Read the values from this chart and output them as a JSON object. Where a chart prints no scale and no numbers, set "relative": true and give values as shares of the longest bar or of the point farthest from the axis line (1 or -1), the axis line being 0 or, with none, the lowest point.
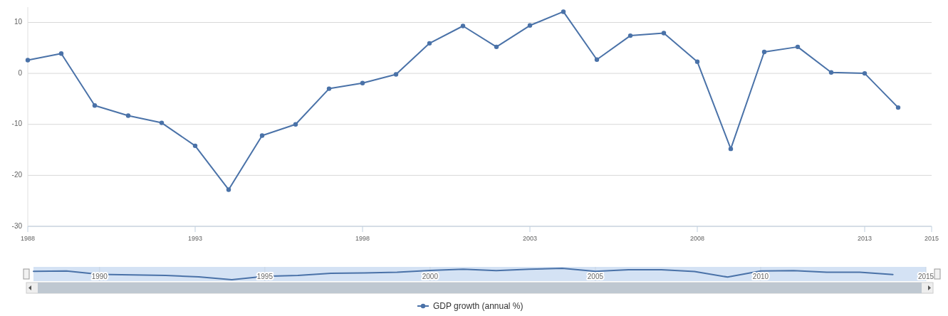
{
  "chart_data": [
    {
      "type": "line",
      "x": [
        1988,
        1989,
        1990,
        1991,
        1992,
        1993,
        1994,
        1995,
        1996,
        1997,
        1998,
        1999,
        2000,
        2001,
        2002,
        2003,
        2004,
        2005,
        2006,
        2007,
        2008,
        2009,
        2010,
        2011,
        2012,
        2013,
        2014
      ],
      "series": [
        {
          "name": "GDP growth (annual %)",
          "color": "#4a72a8",
          "values": [
            2.6,
            3.9,
            -6.3,
            -8.3,
            -9.7,
            -14.2,
            -22.8,
            -12.2,
            -10.0,
            -3.0,
            -1.9,
            -0.2,
            5.9,
            9.3,
            5.2,
            9.4,
            12.1,
            2.7,
            7.4,
            7.9,
            2.3,
            -14.8,
            4.2,
            5.2,
            0.2,
            0.0,
            -6.7
          ]
        }
      ],
      "xlim": [
        1988,
        2015
      ],
      "xticks": [
        1988,
        1993,
        1998,
        2003,
        2008,
        2013,
        2015
      ],
      "ylim": [
        -30,
        13
      ],
      "yticks": [
        -30,
        -20,
        -10,
        0,
        10
      ],
      "grid": "y",
      "marker": "circle",
      "line_style": "solid",
      "legend": "bottom"
    },
    {
      "type": "line",
      "x": [
        1988,
        1989,
        1990,
        1991,
        1992,
        1993,
        1994,
        1995,
        1996,
        1997,
        1998,
        1999,
        2000,
        2001,
        2002,
        2003,
        2004,
        2005,
        2006,
        2007,
        2008,
        2009,
        2010,
        2011,
        2012,
        2013,
        2014
      ],
      "series": [
        {
          "color": "#4a72a8",
          "values": [
            0.73,
            0.77,
            0.47,
            0.42,
            0.38,
            0.25,
            0,
            0.3,
            0.37,
            0.57,
            0.6,
            0.65,
            0.82,
            0.92,
            0.8,
            0.92,
            1,
            0.73,
            0.87,
            0.88,
            0.72,
            0.23,
            0.77,
            0.8,
            0.66,
            0.65,
            0.46
          ]
        }
      ],
      "xlim": [
        1988,
        2015
      ],
      "xticks": [
        1990,
        1995,
        2000,
        2005,
        2010,
        2015
      ],
      "relative": true,
      "tick_labels": "x",
      "grid": "x",
      "marker": "none",
      "line_style": "solid"
    }
  ]
}
